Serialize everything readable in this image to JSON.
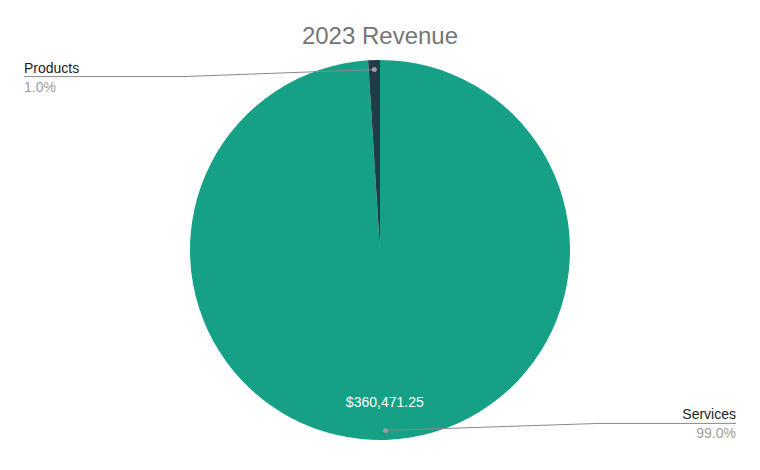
{
  "chart_data": {
    "type": "pie",
    "title": "2023 Revenue",
    "categories": [
      "Services",
      "Products"
    ],
    "values": [
      99.0,
      1.0
    ],
    "value_labels": [
      "99.0%",
      "1.0%"
    ],
    "amount_labels": [
      "$360,471.25",
      null
    ],
    "colors": [
      "#16a085",
      "#1f3c48"
    ]
  }
}
